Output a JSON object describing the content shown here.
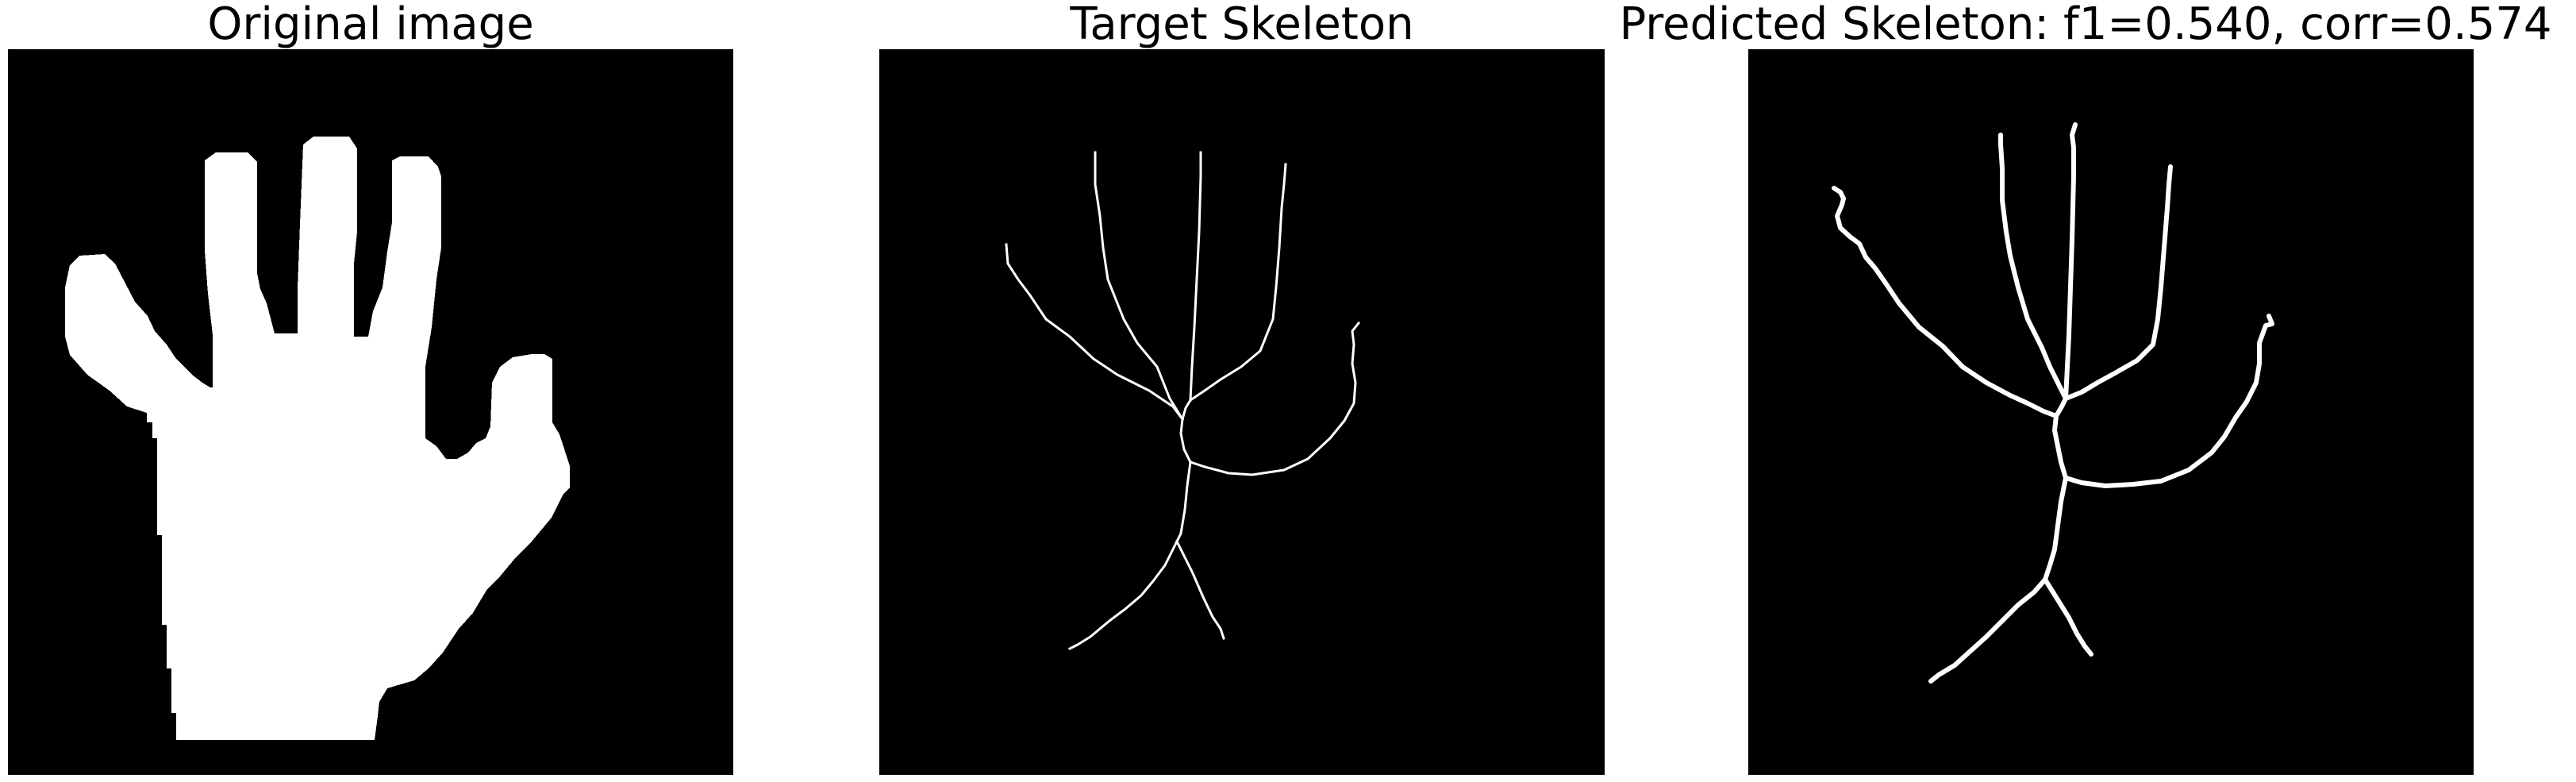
{
  "panels": [
    {
      "title": "Original image"
    },
    {
      "title": "Target Skeleton"
    },
    {
      "title": "Predicted Skeleton: f1=0.540, corr=0.574"
    }
  ],
  "colors": {
    "background": "#ffffff",
    "image_background": "#000000",
    "foreground": "#ffffff",
    "title_text": "#000000"
  }
}
